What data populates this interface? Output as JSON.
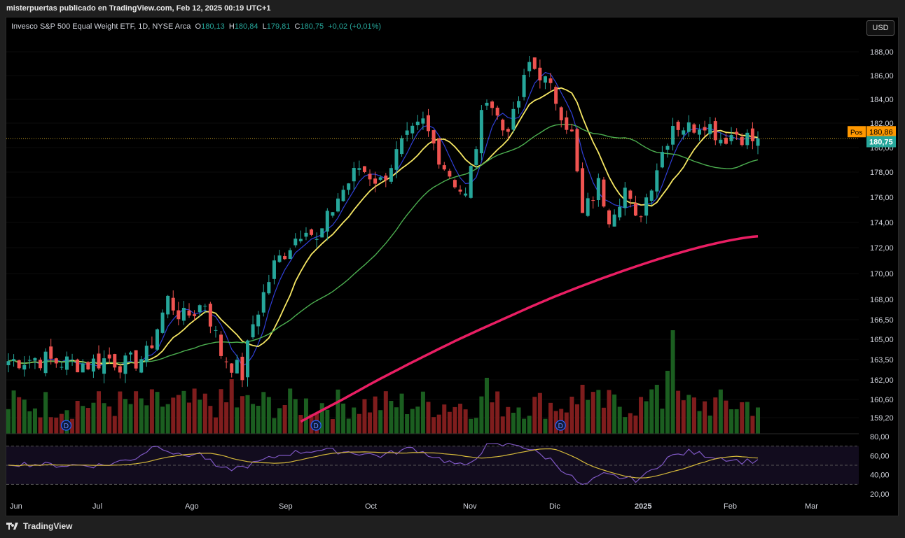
{
  "caption": "misterpuertas publicado en TradingView.com, Feb 12, 2025 00:19 UTC+1",
  "legend": {
    "symbol": "Invesco S&P 500 Equal Weight ETF, 1D, NYSE Arca",
    "o_label": "O",
    "o": "180,13",
    "h_label": "H",
    "h": "180,84",
    "l_label": "L",
    "l": "179,81",
    "c_label": "C",
    "c": "180,75",
    "change": "+0,02 (+0,01%)"
  },
  "currency_button": "USD",
  "footer_brand": "TradingView",
  "chart_data": {
    "type": "candlestick",
    "price_axis_ticks": [
      "188,00",
      "186,00",
      "184,00",
      "182,00",
      "180,00",
      "178,00",
      "176,00",
      "174,00",
      "172,00",
      "170,00",
      "168,00",
      "166,50",
      "165,00",
      "163,50",
      "162,00",
      "160,60",
      "159,20"
    ],
    "price_axis_values": [
      188,
      186,
      184,
      182,
      180,
      178,
      176,
      174,
      172,
      170,
      168,
      166.5,
      165,
      163.5,
      162,
      160.6,
      159.2
    ],
    "rsi_axis_ticks": [
      "80,00",
      "60,00",
      "40,00",
      "20,00"
    ],
    "rsi_axis_values": [
      80,
      60,
      40,
      20
    ],
    "x_labels": [
      "Jun",
      "Jul",
      "Ago",
      "Sep",
      "Oct",
      "Nov",
      "Dic",
      "2025",
      "Feb",
      "Mar"
    ],
    "current_price_label": "180,75",
    "position_label": "Pos",
    "position_price": "180,86",
    "dividend_marker": "D",
    "colors": {
      "up": "#26a69a",
      "down": "#ef5350",
      "vol_up": "#1b5e20",
      "vol_down": "#7f1d1d",
      "ma_fast": "#2f3fd6",
      "ma_mid": "#f5e663",
      "ma_slow": "#4caf50",
      "ma_200": "#e91e63",
      "rsi": "#7e57c2",
      "rsi_ma": "#d4b83a",
      "position": "#ff9800",
      "last_price": "#26a69a"
    },
    "candle_anchors": [
      [
        0,
        163.4
      ],
      [
        5,
        163.6
      ],
      [
        10,
        163.3
      ],
      [
        15,
        163.2
      ],
      [
        19,
        163.6
      ],
      [
        22,
        163.1
      ],
      [
        26,
        163.8
      ],
      [
        30,
        168.0
      ],
      [
        33,
        166.6
      ],
      [
        37,
        167.8
      ],
      [
        40,
        164.0
      ],
      [
        44,
        162.4
      ],
      [
        46,
        166.2
      ],
      [
        50,
        170.6
      ],
      [
        56,
        173.9
      ],
      [
        58,
        172.4
      ],
      [
        62,
        176.0
      ],
      [
        66,
        178.4
      ],
      [
        70,
        177.2
      ],
      [
        74,
        180.2
      ],
      [
        78,
        182.0
      ],
      [
        82,
        178.5
      ],
      [
        86,
        176.0
      ],
      [
        90,
        184.5
      ],
      [
        93,
        181.5
      ],
      [
        95,
        182.4
      ],
      [
        98,
        187.0
      ],
      [
        100,
        186.2
      ],
      [
        103,
        184.0
      ],
      [
        106,
        181.0
      ],
      [
        108,
        174.5
      ],
      [
        111,
        177.0
      ],
      [
        113,
        174.6
      ],
      [
        116,
        176.7
      ],
      [
        118,
        174.0
      ],
      [
        120,
        176.0
      ],
      [
        122,
        178.5
      ],
      [
        125,
        182.0
      ],
      [
        128,
        181.6
      ],
      [
        131,
        182.2
      ],
      [
        134,
        180.8
      ],
      [
        137,
        181.2
      ],
      [
        140,
        180.6
      ],
      [
        141,
        180.75
      ]
    ],
    "dividend_index": [
      11,
      58,
      104
    ],
    "rsi_anchors": [
      [
        0,
        52
      ],
      [
        10,
        50
      ],
      [
        18,
        50
      ],
      [
        24,
        58
      ],
      [
        28,
        72
      ],
      [
        32,
        60
      ],
      [
        36,
        62
      ],
      [
        40,
        45
      ],
      [
        44,
        48
      ],
      [
        48,
        55
      ],
      [
        52,
        62
      ],
      [
        58,
        66
      ],
      [
        64,
        64
      ],
      [
        70,
        60
      ],
      [
        76,
        68
      ],
      [
        82,
        55
      ],
      [
        86,
        48
      ],
      [
        90,
        70
      ],
      [
        96,
        72
      ],
      [
        102,
        56
      ],
      [
        108,
        28
      ],
      [
        112,
        40
      ],
      [
        118,
        35
      ],
      [
        120,
        40
      ],
      [
        124,
        58
      ],
      [
        128,
        64
      ],
      [
        134,
        58
      ],
      [
        138,
        54
      ],
      [
        141,
        55
      ]
    ]
  }
}
